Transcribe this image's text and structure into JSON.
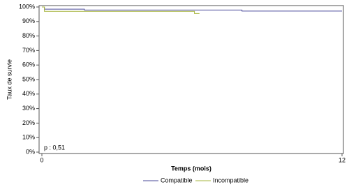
{
  "chart_data": {
    "type": "line",
    "y_label": "Taux de survie",
    "x_label": "Temps (mois)",
    "annotation": "p : 0,51",
    "xlim": [
      0,
      12
    ],
    "xticks": [
      0,
      12
    ],
    "ylim": [
      0,
      100
    ],
    "yticks": [
      {
        "value": 0,
        "label": "0%"
      },
      {
        "value": 10,
        "label": "10%"
      },
      {
        "value": 20,
        "label": "20%"
      },
      {
        "value": 30,
        "label": "30%"
      },
      {
        "value": 40,
        "label": "40%"
      },
      {
        "value": 50,
        "label": "50%"
      },
      {
        "value": 60,
        "label": "60%"
      },
      {
        "value": 70,
        "label": "70%"
      },
      {
        "value": 80,
        "label": "80%"
      },
      {
        "value": 90,
        "label": "90%"
      },
      {
        "value": 100,
        "label": "100%"
      }
    ],
    "series": [
      {
        "name": "Compatible",
        "color": "#4a4a9a",
        "x": [
          0,
          0.1,
          0.1,
          1.7,
          1.7,
          8,
          8,
          12
        ],
        "values": [
          100,
          100,
          98.5,
          98.5,
          97.9,
          97.9,
          97.2,
          97.2
        ]
      },
      {
        "name": "Incompatible",
        "color": "#a6b43c",
        "x": [
          0,
          0.1,
          0.1,
          6.1,
          6.1,
          6.3
        ],
        "values": [
          100,
          100,
          97,
          97,
          95.5,
          95.5
        ]
      }
    ]
  }
}
